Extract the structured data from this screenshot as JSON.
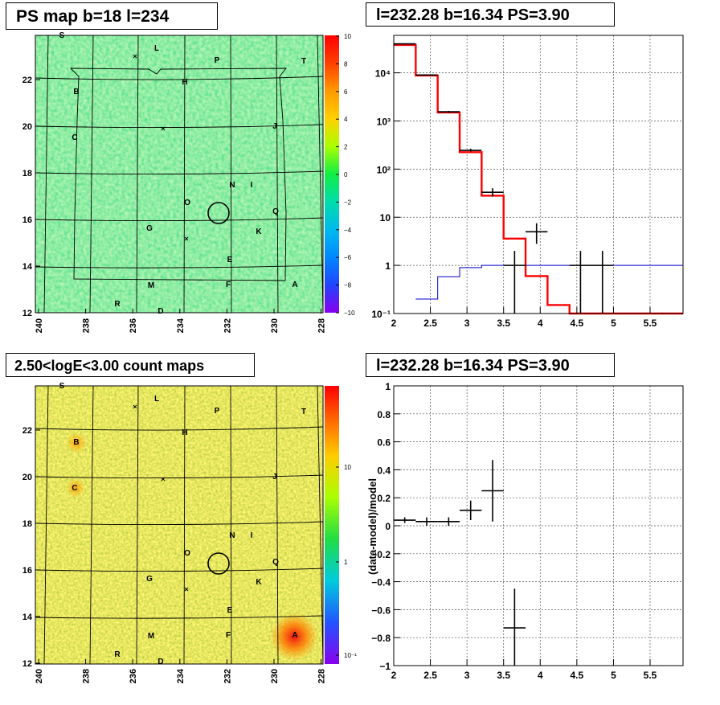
{
  "panels": {
    "ps_map": {
      "title": "PS map b=18 l=234",
      "x_ticks": [
        "240",
        "238",
        "236",
        "234",
        "232",
        "230",
        "228"
      ],
      "y_ticks": [
        "12",
        "14",
        "16",
        "18",
        "20",
        "22"
      ],
      "colorbar_ticks": [
        "10",
        "8",
        "6",
        "4",
        "2",
        "0",
        "−2",
        "−4",
        "−6",
        "−8",
        "−10"
      ],
      "source_labels": [
        "S",
        "L",
        "P",
        "T",
        "H",
        "B",
        "J",
        "C",
        "N",
        "I",
        "O",
        "Q",
        "G",
        "K",
        "E",
        "M",
        "F",
        "A",
        "R",
        "D"
      ]
    },
    "count_map": {
      "title": "2.50<logE<3.00 count maps",
      "x_ticks": [
        "240",
        "238",
        "236",
        "234",
        "232",
        "230",
        "228"
      ],
      "y_ticks": [
        "12",
        "14",
        "16",
        "18",
        "20",
        "22"
      ],
      "colorbar_ticks": [
        "10",
        "1",
        "10⁻¹"
      ],
      "source_labels": [
        "S",
        "L",
        "P",
        "T",
        "H",
        "B",
        "J",
        "C",
        "N",
        "I",
        "O",
        "Q",
        "G",
        "K",
        "E",
        "M",
        "F",
        "A",
        "R",
        "D"
      ]
    },
    "spectrum": {
      "title": "l=232.28 b=16.34 PS=3.90",
      "x_ticks": [
        "2",
        "2.5",
        "3",
        "3.5",
        "4",
        "4.5",
        "5",
        "5.5"
      ],
      "y_ticks": [
        "10⁻¹",
        "1",
        "10",
        "10²",
        "10³",
        "10⁴"
      ]
    },
    "residual": {
      "title": "l=232.28 b=16.34 PS=3.90",
      "ylabel": "(data-model)/model",
      "x_ticks": [
        "2",
        "2.5",
        "3",
        "3.5",
        "4",
        "4.5",
        "5",
        "5.5"
      ],
      "y_ticks": [
        "1",
        "0.8",
        "0.6",
        "0.4",
        "0.2",
        "0",
        "−0.2",
        "−0.4",
        "−0.6",
        "−0.8",
        "−1"
      ]
    }
  },
  "chart_data": [
    {
      "type": "heatmap",
      "title": "PS map b=18 l=234",
      "xlim": [
        240,
        228
      ],
      "ylim": [
        12,
        23.5
      ],
      "zlim": [
        -10,
        10
      ],
      "grid": true,
      "colors": {
        "background": "#22dd55",
        "mark": "#000000"
      }
    },
    {
      "type": "heatmap",
      "title": "2.50<logE<3.00 count maps",
      "xlim": [
        240,
        228
      ],
      "ylim": [
        12,
        23.5
      ],
      "z_scale": "log",
      "grid": true,
      "hotspots": [
        {
          "label": "A",
          "x": 229.1,
          "y": 13.2
        },
        {
          "label": "B",
          "x": 238.5,
          "y": 21.4
        },
        {
          "label": "C",
          "x": 238.5,
          "y": 19.5
        }
      ]
    },
    {
      "type": "line",
      "title": "l=232.28 b=16.34 PS=3.90",
      "xlim": [
        2,
        5.95
      ],
      "ylim": [
        0.1,
        60000
      ],
      "y_scale": "log",
      "grid": true,
      "series": [
        {
          "color": "#ff0000",
          "type": "step",
          "edges": [
            2.0,
            2.3,
            2.6,
            2.9,
            3.2,
            3.5,
            3.8,
            4.1,
            4.4,
            5.95
          ],
          "values": [
            38000,
            8800,
            1500,
            225,
            28,
            3.6,
            0.6,
            0.15,
            0.1
          ]
        },
        {
          "color": "#0000cc",
          "type": "step",
          "edges": [
            2.3,
            2.6,
            2.9,
            3.2,
            3.5,
            5.95
          ],
          "values": [
            0.2,
            0.58,
            0.9,
            1.0,
            1.0
          ]
        },
        {
          "color": "#000000",
          "type": "errorbar",
          "x": [
            2.15,
            2.45,
            2.75,
            3.05,
            3.35,
            3.65,
            3.95,
            4.55,
            4.85
          ],
          "y": [
            40000,
            9000,
            1550,
            245,
            33,
            1.0,
            5.0,
            1.0,
            1.0
          ],
          "ylow": [
            39000,
            8700,
            1480,
            230,
            27,
            0.1,
            2.8,
            0.1,
            0.1
          ],
          "yhigh": [
            41000,
            9300,
            1620,
            265,
            40,
            2.0,
            7.5,
            2.0,
            2.0
          ]
        }
      ]
    },
    {
      "type": "scatter",
      "title": "l=232.28 b=16.34 PS=3.90",
      "ylabel": "(data-model)/model",
      "xlim": [
        2,
        5.95
      ],
      "ylim": [
        -1,
        1
      ],
      "grid": true,
      "series": [
        {
          "color": "#000000",
          "type": "errorbar",
          "x": [
            2.15,
            2.45,
            2.75,
            3.05,
            3.35,
            3.65
          ],
          "y": [
            0.04,
            0.03,
            0.03,
            0.11,
            0.25,
            -0.73
          ],
          "ylow": [
            0.02,
            0.0,
            0.0,
            0.04,
            0.03,
            -1.0
          ],
          "yhigh": [
            0.06,
            0.06,
            0.06,
            0.18,
            0.47,
            -0.45
          ]
        }
      ]
    }
  ]
}
